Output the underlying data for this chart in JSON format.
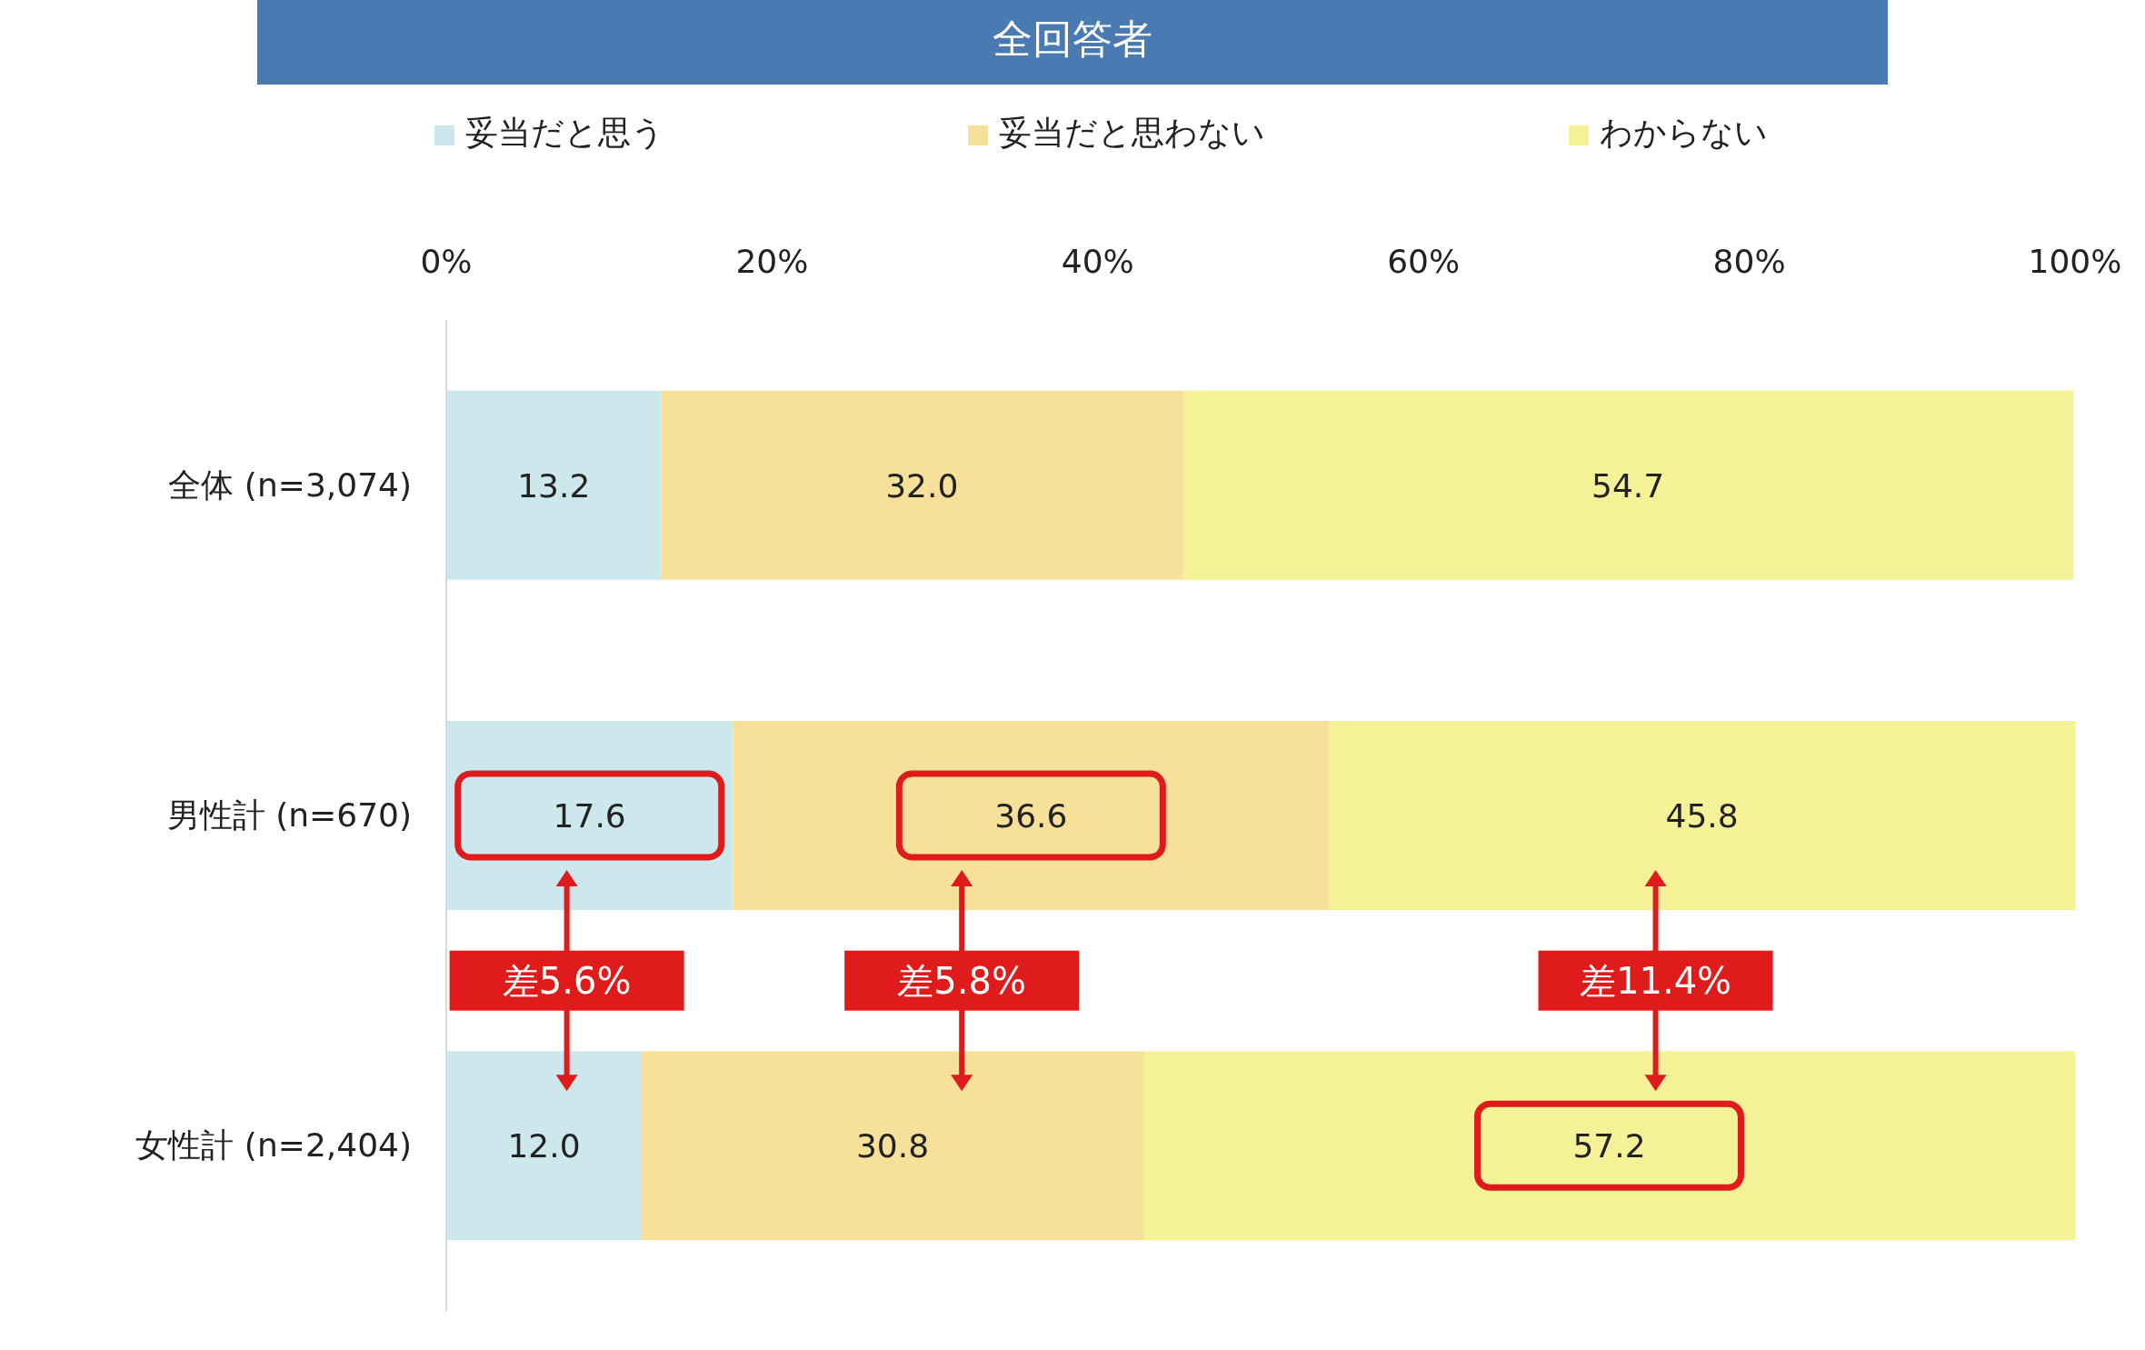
{
  "chart_data": {
    "type": "bar",
    "orientation": "horizontal",
    "stacked": true,
    "title": "全回答者",
    "categories": [
      "全体 (n=3,074)",
      "男性計 (n=670)",
      "女性計 (n=2,404)"
    ],
    "series": [
      {
        "name": "妥当だと思う",
        "color": "#cde8ec",
        "values": [
          13.2,
          17.6,
          12.0
        ],
        "value_labels": [
          "13.2",
          "17.6",
          "12.0"
        ]
      },
      {
        "name": "妥当だと思わない",
        "color": "#f6e09a",
        "values": [
          32.0,
          36.6,
          30.8
        ],
        "value_labels": [
          "32.0",
          "36.6",
          "30.8"
        ]
      },
      {
        "name": "わからない",
        "color": "#f5f197",
        "values": [
          54.7,
          45.8,
          57.2
        ],
        "value_labels": [
          "54.7",
          "45.8",
          "57.2"
        ]
      }
    ],
    "xlim": [
      0,
      100
    ],
    "xticks": [
      {
        "value": 0,
        "label": "0%"
      },
      {
        "value": 20,
        "label": "20%"
      },
      {
        "value": 40,
        "label": "40%"
      },
      {
        "value": 60,
        "label": "60%"
      },
      {
        "value": 80,
        "label": "80%"
      },
      {
        "value": 100,
        "label": "100%"
      }
    ],
    "legend": "top",
    "grid": false,
    "annotations": [
      "差5.6%",
      "差5.8%",
      "差11.4%"
    ]
  }
}
